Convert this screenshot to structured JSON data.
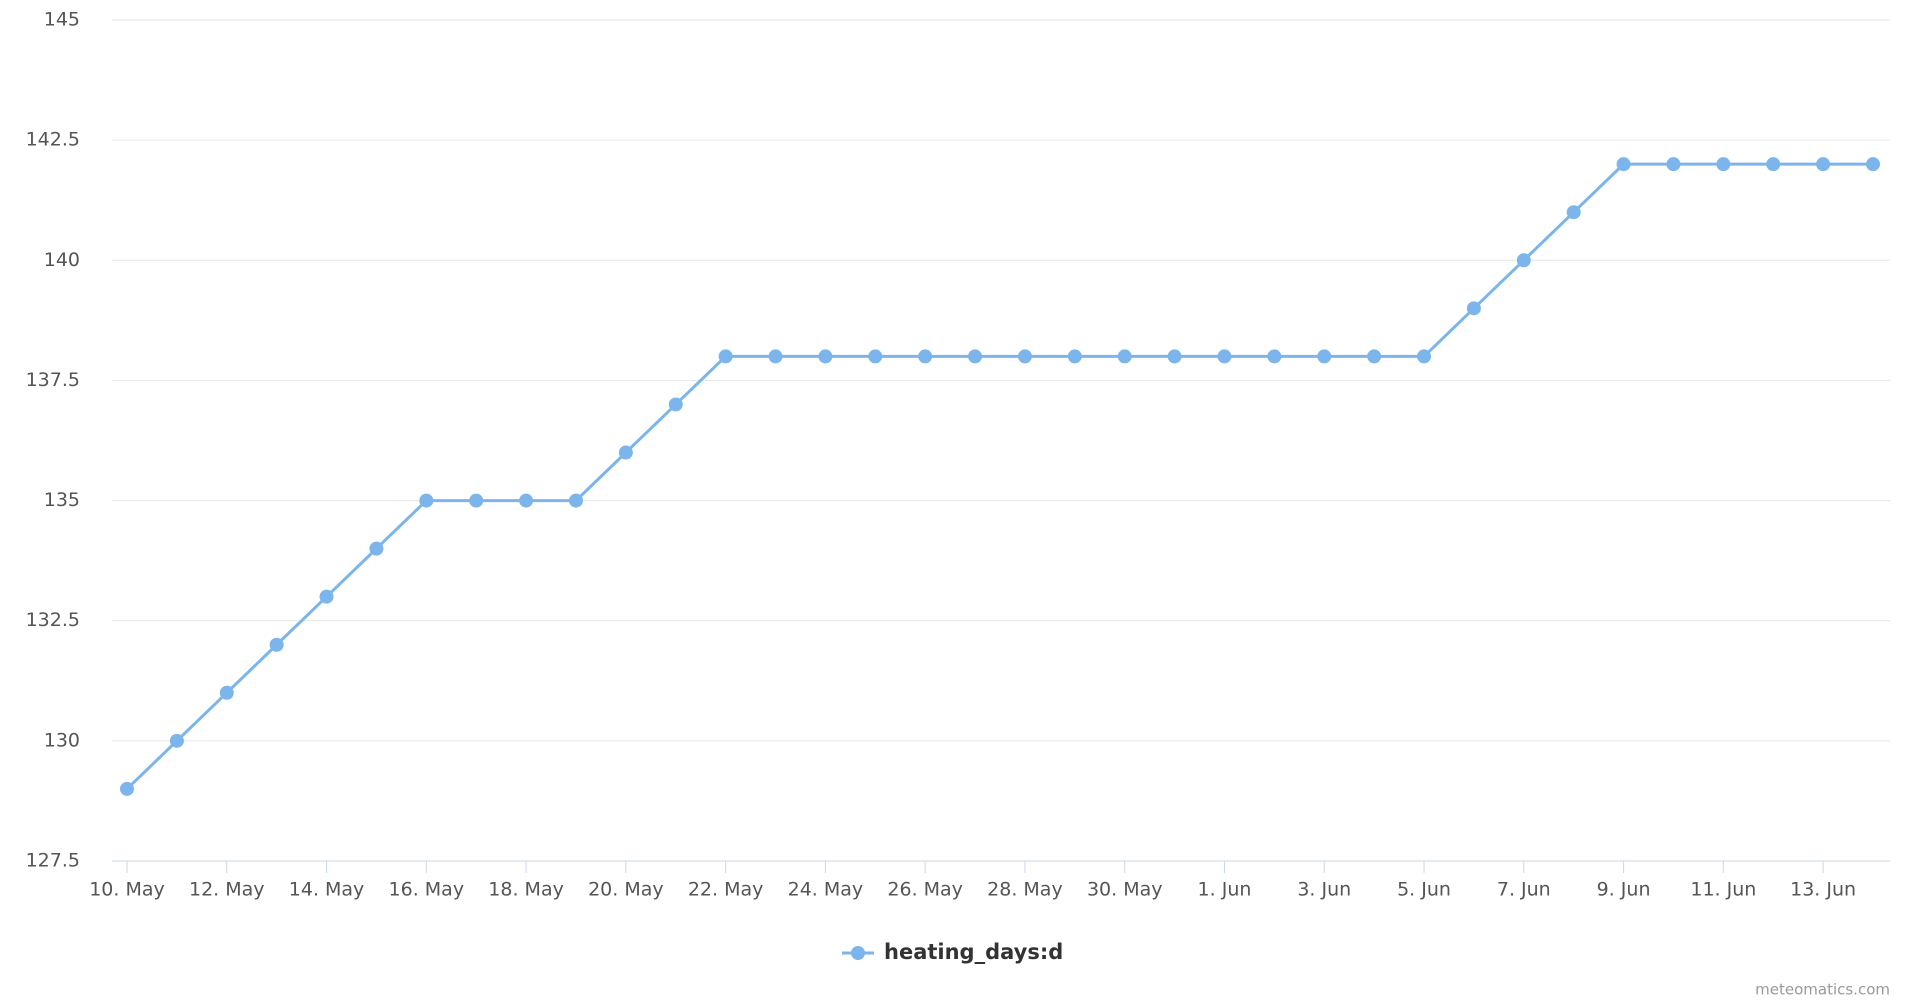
{
  "chart_data": {
    "type": "line",
    "categories": [
      "10. May",
      null,
      "12. May",
      null,
      "14. May",
      null,
      "16. May",
      null,
      "18. May",
      null,
      "20. May",
      null,
      "22. May",
      null,
      "24. May",
      null,
      "26. May",
      null,
      "28. May",
      null,
      "30. May",
      null,
      "1. Jun",
      null,
      "3. Jun",
      null,
      "5. Jun",
      null,
      "7. Jun",
      null,
      "9. Jun",
      null,
      "11. Jun",
      null,
      "13. Jun",
      null
    ],
    "series": [
      {
        "name": "heating_days:d",
        "color": "#7cb5ec",
        "values": [
          129,
          130,
          131,
          132,
          133,
          134,
          135,
          135,
          135,
          135,
          136,
          137,
          138,
          138,
          138,
          138,
          138,
          138,
          138,
          138,
          138,
          138,
          138,
          138,
          138,
          138,
          138,
          139,
          140,
          141,
          142,
          142,
          142,
          142,
          142,
          142
        ]
      }
    ],
    "ylim": [
      127.5,
      145
    ],
    "yticks": [
      127.5,
      130,
      132.5,
      135,
      137.5,
      140,
      142.5,
      145
    ],
    "grid": true,
    "legend": "bottom",
    "credits": "meteomatics.com"
  }
}
